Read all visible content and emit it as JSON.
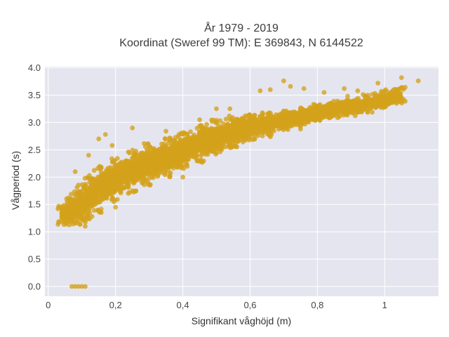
{
  "chart_data": {
    "type": "scatter",
    "title": "År 1979 - 2019",
    "subtitle": "Koordinat (Sweref 99 TM): E 369843, N 6144522",
    "xlabel": "Signifikant våghöjd (m)",
    "ylabel": "Vågperiod (s)",
    "xlim": [
      -0.01,
      1.16
    ],
    "ylim": [
      -0.18,
      4.02
    ],
    "xticks": [
      0,
      0.2,
      0.4,
      0.6,
      0.8,
      1
    ],
    "xtick_labels": [
      "0",
      "0,2",
      "0,4",
      "0,6",
      "0,8",
      "1"
    ],
    "yticks": [
      0,
      0.5,
      1,
      1.5,
      2,
      2.5,
      3,
      3.5,
      4
    ],
    "ytick_labels": [
      "0.0",
      "0.5",
      "1.0",
      "1.5",
      "2.0",
      "2.5",
      "3.0",
      "3.5",
      "4.0"
    ],
    "grid": true,
    "point_color": "#d4a21b",
    "background_color": "#e5e5ef",
    "density_band": [
      [
        0.04,
        1.13,
        1.5
      ],
      [
        0.06,
        1.12,
        1.62
      ],
      [
        0.08,
        1.13,
        1.75
      ],
      [
        0.1,
        1.17,
        1.88
      ],
      [
        0.12,
        1.22,
        2.05
      ],
      [
        0.15,
        1.35,
        2.2
      ],
      [
        0.2,
        1.55,
        2.35
      ],
      [
        0.25,
        1.7,
        2.5
      ],
      [
        0.3,
        1.85,
        2.62
      ],
      [
        0.35,
        2.0,
        2.72
      ],
      [
        0.4,
        2.15,
        2.82
      ],
      [
        0.45,
        2.27,
        2.95
      ],
      [
        0.5,
        2.4,
        3.05
      ],
      [
        0.55,
        2.52,
        3.12
      ],
      [
        0.6,
        2.65,
        3.18
      ],
      [
        0.65,
        2.73,
        3.2
      ],
      [
        0.7,
        2.85,
        3.22
      ],
      [
        0.75,
        2.92,
        3.28
      ],
      [
        0.8,
        3.0,
        3.34
      ],
      [
        0.85,
        3.08,
        3.4
      ],
      [
        0.9,
        3.12,
        3.45
      ],
      [
        0.95,
        3.18,
        3.52
      ],
      [
        1.0,
        3.25,
        3.6
      ],
      [
        1.05,
        3.35,
        3.65
      ]
    ],
    "points": [
      [
        0.07,
        0.0
      ],
      [
        0.08,
        0.0
      ],
      [
        0.09,
        0.0
      ],
      [
        0.1,
        0.0
      ],
      [
        0.11,
        0.0
      ],
      [
        1.1,
        3.76
      ],
      [
        1.05,
        3.82
      ],
      [
        0.98,
        3.72
      ],
      [
        1.04,
        3.6
      ],
      [
        0.88,
        3.62
      ],
      [
        0.7,
        3.76
      ],
      [
        0.63,
        3.58
      ],
      [
        0.66,
        3.6
      ],
      [
        0.72,
        3.66
      ],
      [
        0.76,
        3.62
      ],
      [
        0.82,
        3.55
      ],
      [
        0.92,
        3.58
      ],
      [
        0.95,
        3.5
      ],
      [
        0.75,
        2.88
      ],
      [
        0.66,
        2.8
      ],
      [
        0.17,
        2.78
      ],
      [
        0.15,
        2.7
      ],
      [
        0.19,
        2.58
      ],
      [
        0.08,
        2.1
      ],
      [
        0.11,
        1.1
      ],
      [
        1.03,
        3.45
      ],
      [
        0.89,
        3.48
      ],
      [
        0.58,
        3.05
      ],
      [
        0.85,
        3.28
      ],
      [
        0.35,
        2.84
      ],
      [
        0.4,
        2.0
      ],
      [
        0.2,
        1.45
      ],
      [
        0.12,
        2.4
      ],
      [
        0.25,
        2.9
      ],
      [
        0.45,
        3.05
      ],
      [
        0.5,
        3.25
      ],
      [
        0.06,
        1.3
      ],
      [
        0.05,
        1.4
      ],
      [
        0.54,
        3.25
      ],
      [
        0.6,
        2.75
      ]
    ]
  }
}
